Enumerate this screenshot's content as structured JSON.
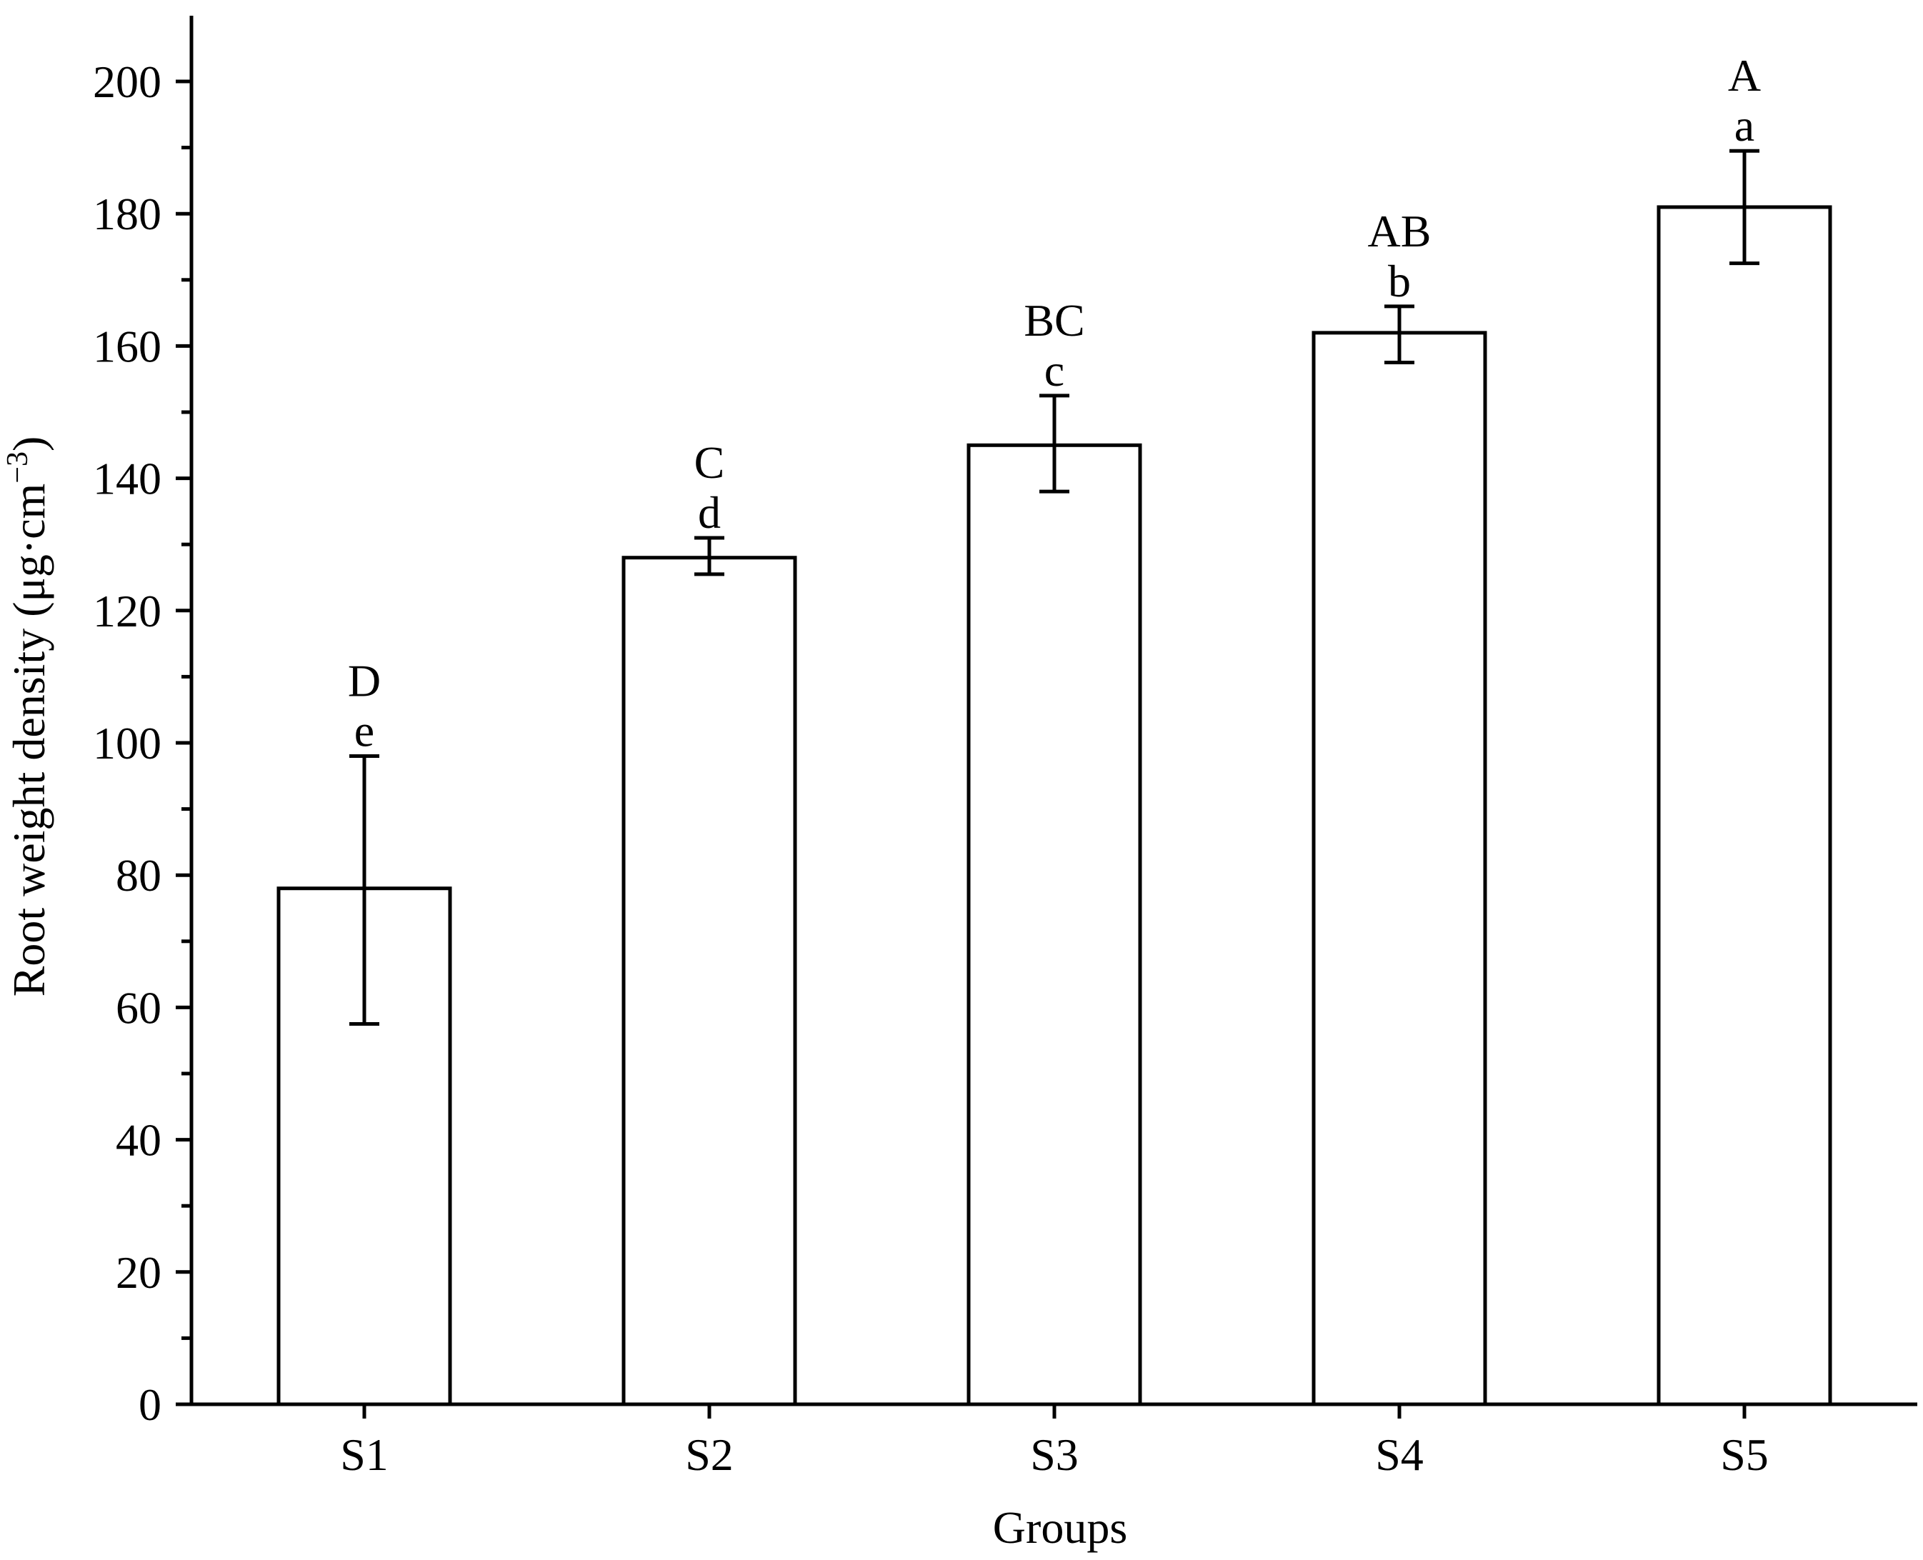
{
  "chart_data": {
    "type": "bar",
    "title": "",
    "xlabel": "Groups",
    "ylabel": {
      "main": "Root weight density (μg·cm",
      "superscript": "−3",
      "close": ")"
    },
    "ylim": [
      0,
      210
    ],
    "yticks": [
      0,
      20,
      40,
      60,
      80,
      100,
      120,
      140,
      160,
      180,
      200
    ],
    "ytick_labels": [
      "0",
      "20",
      "40",
      "60",
      "80",
      "100",
      "120",
      "140",
      "160",
      "180",
      "200"
    ],
    "y_minor_step": 10,
    "categories": [
      "S1",
      "S2",
      "S3",
      "S4",
      "S5"
    ],
    "values": [
      78,
      128,
      145,
      162,
      181
    ],
    "error_low": [
      57.5,
      125.5,
      138,
      157.5,
      172.5
    ],
    "error_high": [
      98,
      131,
      152.5,
      166,
      189.5
    ],
    "sig_upper": [
      "D",
      "C",
      "BC",
      "AB",
      "A"
    ],
    "sig_lower": [
      "e",
      "d",
      "c",
      "b",
      "a"
    ],
    "grid": false,
    "legend": "none",
    "colors": {
      "bar_fill": "#ffffff",
      "bar_stroke": "#000000",
      "axis": "#000000"
    }
  }
}
